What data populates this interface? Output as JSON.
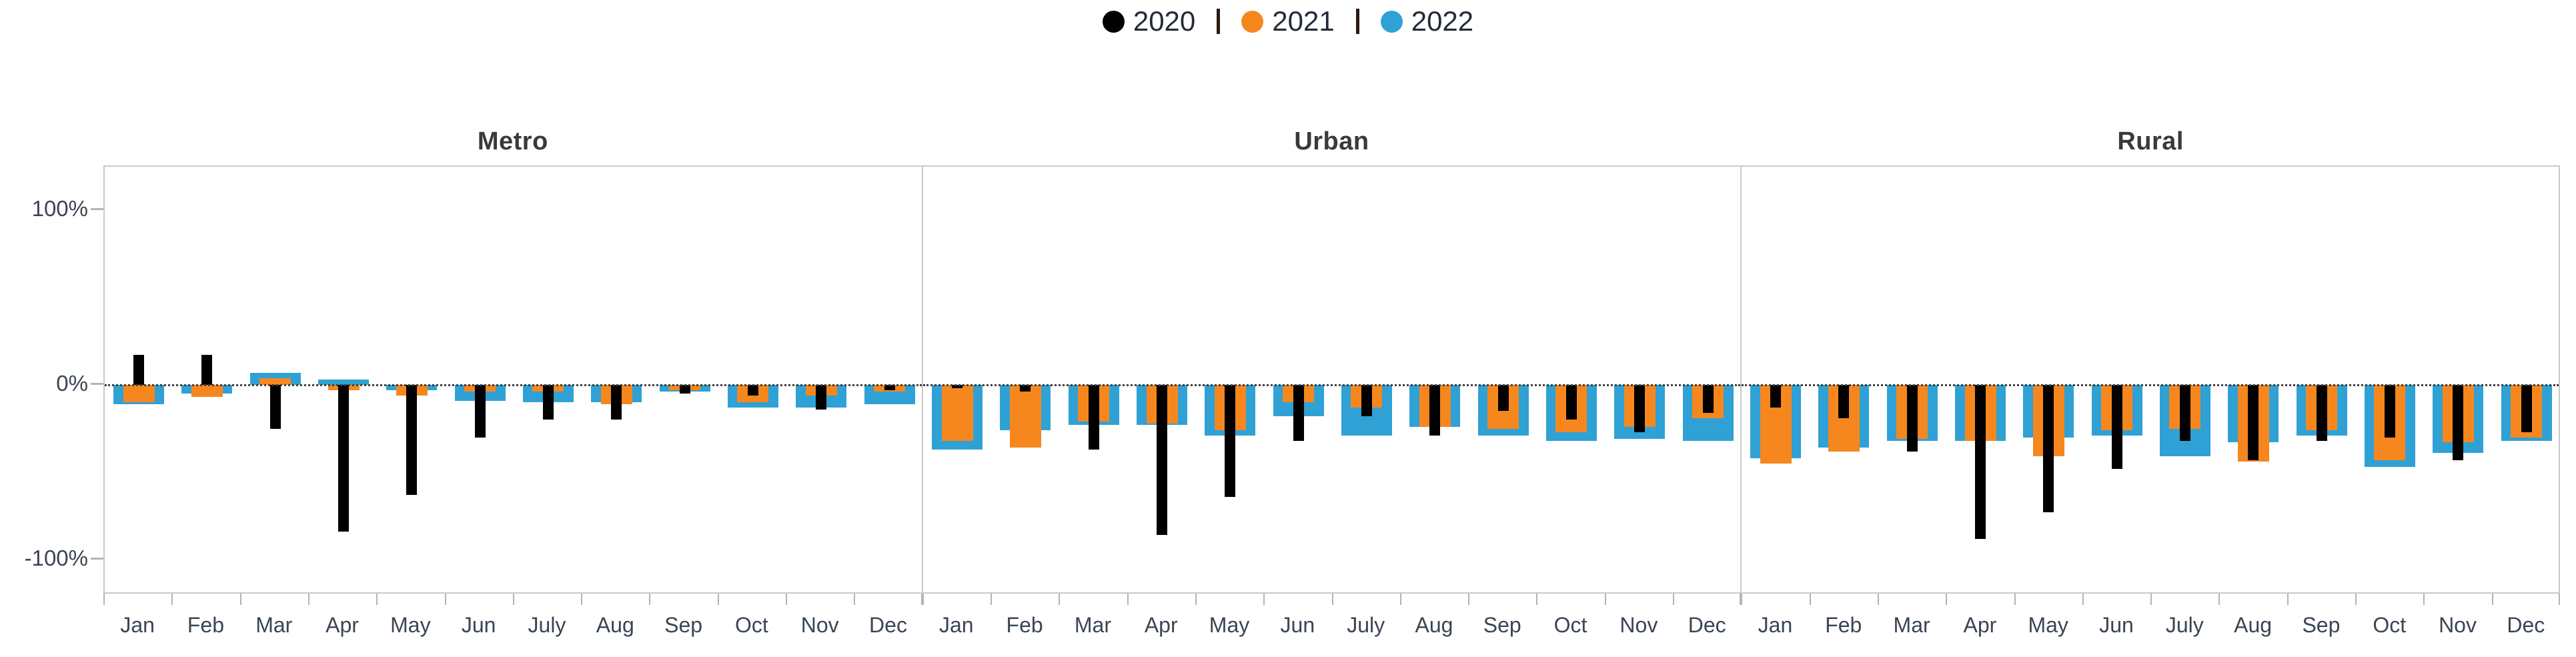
{
  "legend": {
    "items": [
      {
        "label": "2020",
        "color": "#000000"
      },
      {
        "label": "2021",
        "color": "#F6871F"
      },
      {
        "label": "2022",
        "color": "#2FA1D5"
      }
    ],
    "separator_color": "#2B1A10"
  },
  "chart_data": {
    "type": "bar",
    "layout": "three side-by-side facets sharing one y-axis, overlapped (nested-width) bars per month",
    "legend_position": "top-center",
    "unit": "percent",
    "ylim": [
      -125,
      125
    ],
    "zero_line_dotted": true,
    "grid": false,
    "categories": [
      "Jan",
      "Feb",
      "Mar",
      "Apr",
      "May",
      "Jun",
      "July",
      "Aug",
      "Sep",
      "Oct",
      "Nov",
      "Dec"
    ],
    "yticks": [
      {
        "label": "100%",
        "value": 100
      },
      {
        "label": "0%",
        "value": 0
      },
      {
        "label": "-100%",
        "value": -100
      }
    ],
    "panels": [
      {
        "title": "Metro",
        "series": [
          {
            "name": "2020",
            "color": "#000000",
            "values": [
              17,
              17,
              -25,
              -84,
              -63,
              -30,
              -20,
              -20,
              -5,
              -6,
              -14,
              -3
            ]
          },
          {
            "name": "2021",
            "color": "#F6871F",
            "values": [
              -10,
              -7,
              4,
              -3,
              -6,
              -4,
              -4,
              -11,
              -3,
              -10,
              -6,
              -4
            ]
          },
          {
            "name": "2022",
            "color": "#2FA1D5",
            "values": [
              -11,
              -5,
              7,
              3,
              -3,
              -9,
              -10,
              -10,
              -4,
              -13,
              -13,
              -11
            ]
          }
        ]
      },
      {
        "title": "Urban",
        "series": [
          {
            "name": "2020",
            "color": "#000000",
            "values": [
              -2,
              -4,
              -37,
              -86,
              -64,
              -32,
              -18,
              -29,
              -15,
              -20,
              -27,
              -16
            ]
          },
          {
            "name": "2021",
            "color": "#F6871F",
            "values": [
              -32,
              -36,
              -21,
              -22,
              -26,
              -10,
              -13,
              -24,
              -25,
              -27,
              -24,
              -19
            ]
          },
          {
            "name": "2022",
            "color": "#2FA1D5",
            "values": [
              -37,
              -26,
              -23,
              -23,
              -29,
              -18,
              -29,
              -24,
              -29,
              -32,
              -31,
              -32
            ]
          }
        ]
      },
      {
        "title": "Rural",
        "series": [
          {
            "name": "2020",
            "color": "#000000",
            "values": [
              -13,
              -19,
              -38,
              -88,
              -73,
              -48,
              -32,
              -43,
              -32,
              -30,
              -43,
              -27
            ]
          },
          {
            "name": "2021",
            "color": "#F6871F",
            "values": [
              -45,
              -38,
              -31,
              -32,
              -41,
              -26,
              -25,
              -44,
              -26,
              -43,
              -33,
              -30
            ]
          },
          {
            "name": "2022",
            "color": "#2FA1D5",
            "values": [
              -42,
              -36,
              -32,
              -32,
              -30,
              -29,
              -41,
              -33,
              -29,
              -47,
              -39,
              -32
            ]
          }
        ]
      }
    ]
  }
}
